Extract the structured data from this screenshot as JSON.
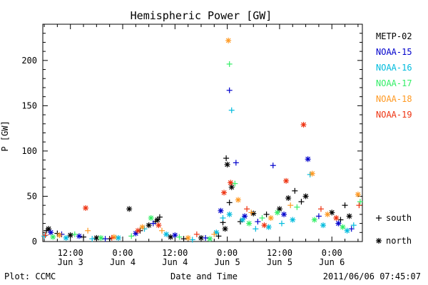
{
  "chart_data": {
    "type": "scatter",
    "title": "Hemispheric Power [GW]",
    "ylabel": "P [GW]",
    "xlabel": "Date and Time",
    "ylim": [
      0,
      240
    ],
    "xlim": [
      "2011-06-03T05:40",
      "2011-06-06T07:00"
    ],
    "y_ticks": [
      0,
      50,
      100,
      150,
      200
    ],
    "x_ticks": [
      {
        "t": "2011-06-03T12:00",
        "line1": "12:00",
        "line2": "Jun 3"
      },
      {
        "t": "2011-06-04T00:00",
        "line1": "0:00",
        "line2": "Jun 4"
      },
      {
        "t": "2011-06-04T12:00",
        "line1": "12:00",
        "line2": "Jun 4"
      },
      {
        "t": "2011-06-05T00:00",
        "line1": "0:00",
        "line2": "Jun 5"
      },
      {
        "t": "2011-06-05T12:00",
        "line1": "12:00",
        "line2": "Jun 5"
      },
      {
        "t": "2011-06-06T00:00",
        "line1": "0:00",
        "line2": "Jun 6"
      }
    ],
    "grid": false,
    "legend_position": "right",
    "marker_legend": [
      {
        "symbol": "+",
        "label": "south"
      },
      {
        "symbol": "*",
        "label": "north"
      }
    ],
    "series": [
      {
        "name": "METP-02",
        "color": "#000000",
        "points": [
          {
            "t": "2011-06-03T06:30",
            "y": 12,
            "m": "+"
          },
          {
            "t": "2011-06-03T07:00",
            "y": 14,
            "m": "*"
          },
          {
            "t": "2011-06-03T09:00",
            "y": 9,
            "m": "+"
          },
          {
            "t": "2011-06-03T12:00",
            "y": 7,
            "m": "*"
          },
          {
            "t": "2011-06-03T15:00",
            "y": 5,
            "m": "+"
          },
          {
            "t": "2011-06-03T18:00",
            "y": 4,
            "m": "*"
          },
          {
            "t": "2011-06-03T21:00",
            "y": 3,
            "m": "+"
          },
          {
            "t": "2011-06-04T01:30",
            "y": 36,
            "m": "*"
          },
          {
            "t": "2011-06-04T04:00",
            "y": 12,
            "m": "+"
          },
          {
            "t": "2011-06-04T06:00",
            "y": 18,
            "m": "*"
          },
          {
            "t": "2011-06-04T07:30",
            "y": 22,
            "m": "+"
          },
          {
            "t": "2011-06-04T08:00",
            "y": 24,
            "m": "*"
          },
          {
            "t": "2011-06-04T08:30",
            "y": 27,
            "m": "+"
          },
          {
            "t": "2011-06-04T11:00",
            "y": 5,
            "m": "*"
          },
          {
            "t": "2011-06-04T14:00",
            "y": 3,
            "m": "+"
          },
          {
            "t": "2011-06-04T18:00",
            "y": 4,
            "m": "*"
          },
          {
            "t": "2011-06-04T22:00",
            "y": 6,
            "m": "+"
          },
          {
            "t": "2011-06-04T23:00",
            "y": 21,
            "m": "+"
          },
          {
            "t": "2011-06-04T23:30",
            "y": 14,
            "m": "*"
          },
          {
            "t": "2011-06-04T23:45",
            "y": 92,
            "m": "+"
          },
          {
            "t": "2011-06-05T00:00",
            "y": 85,
            "m": "*"
          },
          {
            "t": "2011-06-05T00:30",
            "y": 43,
            "m": "+"
          },
          {
            "t": "2011-06-05T01:00",
            "y": 60,
            "m": "*"
          },
          {
            "t": "2011-06-05T03:00",
            "y": 22,
            "m": "+"
          },
          {
            "t": "2011-06-05T06:00",
            "y": 31,
            "m": "*"
          },
          {
            "t": "2011-06-05T09:00",
            "y": 30,
            "m": "+"
          },
          {
            "t": "2011-06-05T12:00",
            "y": 36,
            "m": "*"
          },
          {
            "t": "2011-06-05T14:00",
            "y": 48,
            "m": "*"
          },
          {
            "t": "2011-06-05T15:30",
            "y": 56,
            "m": "+"
          },
          {
            "t": "2011-06-05T17:00",
            "y": 44,
            "m": "+"
          },
          {
            "t": "2011-06-05T18:00",
            "y": 50,
            "m": "*"
          },
          {
            "t": "2011-06-06T00:00",
            "y": 32,
            "m": "*"
          },
          {
            "t": "2011-06-06T02:00",
            "y": 24,
            "m": "+"
          },
          {
            "t": "2011-06-06T03:00",
            "y": 40,
            "m": "+"
          },
          {
            "t": "2011-06-06T04:00",
            "y": 28,
            "m": "*"
          }
        ]
      },
      {
        "name": "NOAA-15",
        "color": "#0000cc",
        "points": [
          {
            "t": "2011-06-03T07:30",
            "y": 10,
            "m": "*"
          },
          {
            "t": "2011-06-03T10:00",
            "y": 8,
            "m": "+"
          },
          {
            "t": "2011-06-03T14:00",
            "y": 6,
            "m": "*"
          },
          {
            "t": "2011-06-03T20:00",
            "y": 3,
            "m": "+"
          },
          {
            "t": "2011-06-04T03:00",
            "y": 9,
            "m": "*"
          },
          {
            "t": "2011-06-04T07:00",
            "y": 20,
            "m": "+"
          },
          {
            "t": "2011-06-04T12:00",
            "y": 7,
            "m": "*"
          },
          {
            "t": "2011-06-04T19:00",
            "y": 4,
            "m": "+"
          },
          {
            "t": "2011-06-04T22:30",
            "y": 34,
            "m": "*"
          },
          {
            "t": "2011-06-05T00:30",
            "y": 167,
            "m": "+"
          },
          {
            "t": "2011-06-05T02:00",
            "y": 87,
            "m": "+"
          },
          {
            "t": "2011-06-05T04:00",
            "y": 28,
            "m": "*"
          },
          {
            "t": "2011-06-05T07:00",
            "y": 22,
            "m": "+"
          },
          {
            "t": "2011-06-05T10:30",
            "y": 84,
            "m": "+"
          },
          {
            "t": "2011-06-05T13:00",
            "y": 30,
            "m": "*"
          },
          {
            "t": "2011-06-05T18:30",
            "y": 91,
            "m": "*"
          },
          {
            "t": "2011-06-05T21:00",
            "y": 28,
            "m": "+"
          },
          {
            "t": "2011-06-06T01:30",
            "y": 20,
            "m": "*"
          },
          {
            "t": "2011-06-06T04:30",
            "y": 14,
            "m": "+"
          }
        ]
      },
      {
        "name": "NOAA-16",
        "color": "#00bbdd",
        "points": [
          {
            "t": "2011-06-03T06:00",
            "y": 6,
            "m": "+"
          },
          {
            "t": "2011-06-03T11:00",
            "y": 4,
            "m": "*"
          },
          {
            "t": "2011-06-03T17:00",
            "y": 3,
            "m": "+"
          },
          {
            "t": "2011-06-03T23:00",
            "y": 4,
            "m": "*"
          },
          {
            "t": "2011-06-04T05:00",
            "y": 14,
            "m": "+"
          },
          {
            "t": "2011-06-04T10:00",
            "y": 8,
            "m": "*"
          },
          {
            "t": "2011-06-04T16:00",
            "y": 2,
            "m": "+"
          },
          {
            "t": "2011-06-04T21:30",
            "y": 10,
            "m": "*"
          },
          {
            "t": "2011-06-04T23:00",
            "y": 26,
            "m": "+"
          },
          {
            "t": "2011-06-05T00:30",
            "y": 30,
            "m": "*"
          },
          {
            "t": "2011-06-05T01:00",
            "y": 145,
            "m": "+"
          },
          {
            "t": "2011-06-05T03:30",
            "y": 24,
            "m": "*"
          },
          {
            "t": "2011-06-05T06:30",
            "y": 14,
            "m": "+"
          },
          {
            "t": "2011-06-05T09:30",
            "y": 16,
            "m": "*"
          },
          {
            "t": "2011-06-05T12:30",
            "y": 20,
            "m": "+"
          },
          {
            "t": "2011-06-05T15:00",
            "y": 24,
            "m": "*"
          },
          {
            "t": "2011-06-05T19:00",
            "y": 74,
            "m": "+"
          },
          {
            "t": "2011-06-05T22:00",
            "y": 18,
            "m": "*"
          },
          {
            "t": "2011-06-06T03:30",
            "y": 12,
            "m": "*"
          },
          {
            "t": "2011-06-06T05:00",
            "y": 18,
            "m": "+"
          }
        ]
      },
      {
        "name": "NOAA-17",
        "color": "#33ee66",
        "points": [
          {
            "t": "2011-06-03T08:00",
            "y": 5,
            "m": "*"
          },
          {
            "t": "2011-06-03T13:00",
            "y": 8,
            "m": "+"
          },
          {
            "t": "2011-06-03T19:00",
            "y": 4,
            "m": "*"
          },
          {
            "t": "2011-06-04T02:00",
            "y": 6,
            "m": "+"
          },
          {
            "t": "2011-06-04T06:30",
            "y": 26,
            "m": "*"
          },
          {
            "t": "2011-06-04T13:00",
            "y": 5,
            "m": "+"
          },
          {
            "t": "2011-06-04T20:00",
            "y": 3,
            "m": "*"
          },
          {
            "t": "2011-06-05T00:30",
            "y": 196,
            "m": "+"
          },
          {
            "t": "2011-06-05T01:45",
            "y": 64,
            "m": "+"
          },
          {
            "t": "2011-06-05T05:00",
            "y": 20,
            "m": "*"
          },
          {
            "t": "2011-06-05T08:00",
            "y": 26,
            "m": "+"
          },
          {
            "t": "2011-06-05T11:30",
            "y": 32,
            "m": "*"
          },
          {
            "t": "2011-06-05T16:00",
            "y": 38,
            "m": "+"
          },
          {
            "t": "2011-06-05T20:00",
            "y": 24,
            "m": "*"
          },
          {
            "t": "2011-06-06T02:30",
            "y": 16,
            "m": "*"
          },
          {
            "t": "2011-06-06T06:30",
            "y": 44,
            "m": "+"
          }
        ]
      },
      {
        "name": "NOAA-18",
        "color": "#ff9922",
        "points": [
          {
            "t": "2011-06-03T09:30",
            "y": 7,
            "m": "*"
          },
          {
            "t": "2011-06-03T16:00",
            "y": 12,
            "m": "+"
          },
          {
            "t": "2011-06-03T22:00",
            "y": 5,
            "m": "*"
          },
          {
            "t": "2011-06-04T04:30",
            "y": 16,
            "m": "*"
          },
          {
            "t": "2011-06-04T09:00",
            "y": 12,
            "m": "+"
          },
          {
            "t": "2011-06-04T15:00",
            "y": 4,
            "m": "*"
          },
          {
            "t": "2011-06-04T21:00",
            "y": 8,
            "m": "+"
          },
          {
            "t": "2011-06-05T00:15",
            "y": 222,
            "m": "*"
          },
          {
            "t": "2011-06-05T02:30",
            "y": 46,
            "m": "*"
          },
          {
            "t": "2011-06-05T05:30",
            "y": 32,
            "m": "+"
          },
          {
            "t": "2011-06-05T10:00",
            "y": 26,
            "m": "*"
          },
          {
            "t": "2011-06-05T14:30",
            "y": 40,
            "m": "+"
          },
          {
            "t": "2011-06-05T19:30",
            "y": 75,
            "m": "*"
          },
          {
            "t": "2011-06-05T23:00",
            "y": 30,
            "m": "*"
          },
          {
            "t": "2011-06-06T06:00",
            "y": 52,
            "m": "*"
          }
        ]
      },
      {
        "name": "NOAA-19",
        "color": "#ee3311",
        "points": [
          {
            "t": "2011-06-03T06:15",
            "y": 7,
            "m": "+"
          },
          {
            "t": "2011-06-03T15:30",
            "y": 37,
            "m": "*"
          },
          {
            "t": "2011-06-03T21:30",
            "y": 4,
            "m": "+"
          },
          {
            "t": "2011-06-04T03:30",
            "y": 12,
            "m": "*"
          },
          {
            "t": "2011-06-04T08:15",
            "y": 18,
            "m": "*"
          },
          {
            "t": "2011-06-04T17:00",
            "y": 8,
            "m": "+"
          },
          {
            "t": "2011-06-04T23:15",
            "y": 54,
            "m": "*"
          },
          {
            "t": "2011-06-05T00:45",
            "y": 65,
            "m": "*"
          },
          {
            "t": "2011-06-05T04:30",
            "y": 36,
            "m": "+"
          },
          {
            "t": "2011-06-05T08:30",
            "y": 18,
            "m": "*"
          },
          {
            "t": "2011-06-05T13:30",
            "y": 67,
            "m": "*"
          },
          {
            "t": "2011-06-05T17:30",
            "y": 129,
            "m": "*"
          },
          {
            "t": "2011-06-05T21:30",
            "y": 36,
            "m": "+"
          },
          {
            "t": "2011-06-06T01:00",
            "y": 26,
            "m": "*"
          },
          {
            "t": "2011-06-06T06:15",
            "y": 40,
            "m": "+"
          }
        ]
      }
    ]
  },
  "footer": {
    "left": "Plot: CCMC",
    "timestamp": "2011/06/06 07:45:07"
  }
}
